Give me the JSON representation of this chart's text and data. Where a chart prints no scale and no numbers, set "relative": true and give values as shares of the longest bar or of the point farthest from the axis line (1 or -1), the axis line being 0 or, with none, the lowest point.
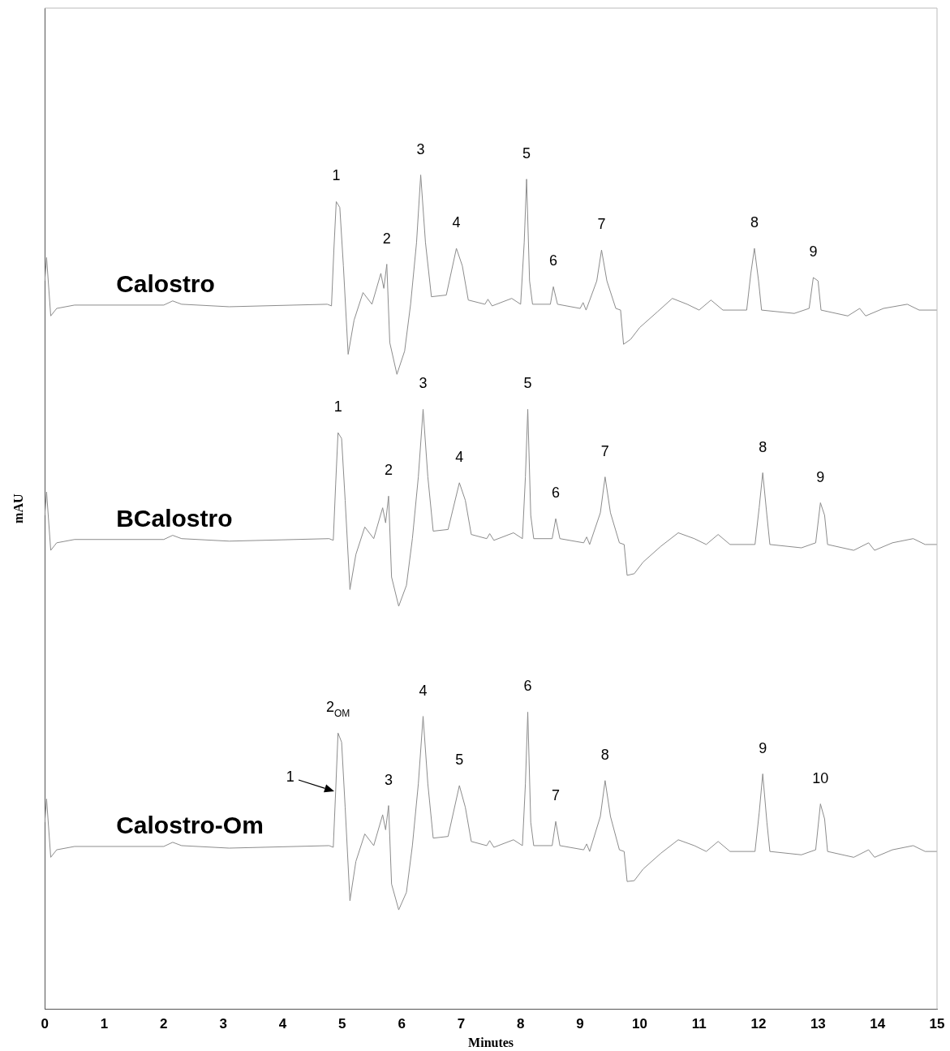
{
  "chart_data": {
    "type": "line",
    "relative": true,
    "xlabel": "Minutes",
    "ylabel": "mAU",
    "xlim": [
      0,
      15
    ],
    "xticks": [
      0,
      1,
      2,
      3,
      4,
      5,
      6,
      7,
      8,
      9,
      10,
      11,
      12,
      13,
      14,
      15
    ],
    "tick_labels": "x",
    "grid": false,
    "legend": false,
    "marker": "none",
    "line_style": "solid",
    "series": [
      {
        "name": "Calostro",
        "color": "#8c8c8c",
        "x": [
          0,
          0.03,
          0.1,
          0.2,
          0.5,
          2.0,
          2.15,
          2.3,
          3.1,
          4.75,
          4.82,
          4.86,
          4.9,
          4.96,
          5.02,
          5.1,
          5.2,
          5.35,
          5.5,
          5.65,
          5.7,
          5.75,
          5.8,
          5.92,
          6.05,
          6.15,
          6.25,
          6.32,
          6.4,
          6.5,
          6.75,
          6.92,
          7.02,
          7.12,
          7.4,
          7.45,
          7.52,
          7.85,
          8.0,
          8.06,
          8.1,
          8.15,
          8.2,
          8.5,
          8.55,
          8.62,
          9.0,
          9.05,
          9.1,
          9.28,
          9.36,
          9.45,
          9.6,
          9.68,
          9.73,
          9.85,
          10.0,
          10.3,
          10.55,
          10.8,
          11.0,
          11.2,
          11.4,
          11.8,
          11.87,
          11.93,
          12.0,
          12.05,
          12.6,
          12.85,
          12.92,
          13.0,
          13.05,
          13.5,
          13.7,
          13.8,
          14.1,
          14.5,
          14.7,
          15.0
        ],
        "values": [
          0.873,
          0.901,
          0.831,
          0.84,
          0.844,
          0.844,
          0.849,
          0.845,
          0.842,
          0.845,
          0.843,
          0.91,
          0.968,
          0.961,
          0.891,
          0.785,
          0.826,
          0.859,
          0.845,
          0.882,
          0.864,
          0.893,
          0.799,
          0.761,
          0.789,
          0.845,
          0.919,
          1,
          0.919,
          0.854,
          0.856,
          0.912,
          0.891,
          0.85,
          0.845,
          0.851,
          0.843,
          0.852,
          0.845,
          0.919,
          0.995,
          0.873,
          0.845,
          0.845,
          0.866,
          0.845,
          0.84,
          0.847,
          0.838,
          0.873,
          0.91,
          0.873,
          0.84,
          0.838,
          0.797,
          0.803,
          0.817,
          0.836,
          0.852,
          0.845,
          0.838,
          0.85,
          0.838,
          0.838,
          0.882,
          0.912,
          0.873,
          0.838,
          0.834,
          0.84,
          0.877,
          0.873,
          0.838,
          0.831,
          0.84,
          0.831,
          0.84,
          0.845,
          0.838,
          0.838
        ]
      },
      {
        "name": "BCalostro",
        "color": "#8c8c8c",
        "x": [
          0,
          0.03,
          0.1,
          0.2,
          0.5,
          2.0,
          2.15,
          2.3,
          3.1,
          4.78,
          4.85,
          4.89,
          4.93,
          4.99,
          5.05,
          5.13,
          5.23,
          5.38,
          5.53,
          5.68,
          5.73,
          5.78,
          5.83,
          5.95,
          6.08,
          6.18,
          6.28,
          6.36,
          6.44,
          6.53,
          6.78,
          6.97,
          7.07,
          7.17,
          7.43,
          7.48,
          7.55,
          7.88,
          8.03,
          8.08,
          8.12,
          8.17,
          8.22,
          8.53,
          8.59,
          8.66,
          9.06,
          9.11,
          9.16,
          9.34,
          9.42,
          9.51,
          9.66,
          9.74,
          9.79,
          9.91,
          10.06,
          10.36,
          10.65,
          10.92,
          11.12,
          11.32,
          11.52,
          11.94,
          12.01,
          12.07,
          12.14,
          12.19,
          12.72,
          12.96,
          13.04,
          13.11,
          13.16,
          13.6,
          13.85,
          13.95,
          14.25,
          14.6,
          14.8,
          15.0
        ],
        "values": [
          0.592,
          0.62,
          0.55,
          0.559,
          0.563,
          0.563,
          0.568,
          0.564,
          0.561,
          0.564,
          0.562,
          0.629,
          0.691,
          0.684,
          0.61,
          0.503,
          0.545,
          0.578,
          0.564,
          0.601,
          0.583,
          0.615,
          0.518,
          0.483,
          0.508,
          0.564,
          0.638,
          0.719,
          0.638,
          0.573,
          0.575,
          0.631,
          0.61,
          0.569,
          0.564,
          0.57,
          0.562,
          0.571,
          0.564,
          0.638,
          0.719,
          0.592,
          0.564,
          0.564,
          0.588,
          0.564,
          0.559,
          0.566,
          0.557,
          0.595,
          0.638,
          0.595,
          0.559,
          0.557,
          0.52,
          0.522,
          0.536,
          0.555,
          0.571,
          0.564,
          0.557,
          0.569,
          0.557,
          0.557,
          0.601,
          0.643,
          0.592,
          0.557,
          0.553,
          0.559,
          0.607,
          0.592,
          0.557,
          0.55,
          0.559,
          0.55,
          0.559,
          0.564,
          0.557,
          0.557
        ]
      },
      {
        "name": "Calostro-Om",
        "color": "#8c8c8c",
        "x": [
          0,
          0.03,
          0.1,
          0.2,
          0.5,
          2.0,
          2.15,
          2.3,
          3.1,
          4.78,
          4.85,
          4.89,
          4.93,
          4.99,
          5.05,
          5.13,
          5.23,
          5.38,
          5.53,
          5.68,
          5.73,
          5.78,
          5.83,
          5.95,
          6.08,
          6.18,
          6.28,
          6.36,
          6.44,
          6.53,
          6.78,
          6.97,
          7.07,
          7.17,
          7.43,
          7.48,
          7.55,
          7.88,
          8.03,
          8.08,
          8.12,
          8.17,
          8.22,
          8.53,
          8.59,
          8.66,
          9.06,
          9.11,
          9.16,
          9.34,
          9.42,
          9.51,
          9.66,
          9.74,
          9.79,
          9.91,
          10.06,
          10.36,
          10.65,
          10.92,
          11.12,
          11.32,
          11.52,
          11.94,
          12.01,
          12.07,
          12.14,
          12.19,
          12.72,
          12.96,
          13.04,
          13.11,
          13.16,
          13.6,
          13.85,
          13.95,
          14.25,
          14.6,
          14.8,
          15.0
        ],
        "values": [
          0.224,
          0.252,
          0.182,
          0.191,
          0.195,
          0.195,
          0.2,
          0.196,
          0.193,
          0.196,
          0.194,
          0.261,
          0.331,
          0.32,
          0.242,
          0.13,
          0.177,
          0.21,
          0.196,
          0.233,
          0.215,
          0.244,
          0.15,
          0.119,
          0.14,
          0.196,
          0.27,
          0.351,
          0.27,
          0.205,
          0.207,
          0.268,
          0.242,
          0.201,
          0.196,
          0.202,
          0.194,
          0.203,
          0.196,
          0.27,
          0.356,
          0.224,
          0.196,
          0.196,
          0.225,
          0.196,
          0.191,
          0.198,
          0.189,
          0.231,
          0.274,
          0.231,
          0.191,
          0.189,
          0.153,
          0.154,
          0.168,
          0.187,
          0.203,
          0.196,
          0.189,
          0.201,
          0.189,
          0.189,
          0.235,
          0.282,
          0.224,
          0.189,
          0.185,
          0.191,
          0.246,
          0.228,
          0.189,
          0.182,
          0.191,
          0.182,
          0.191,
          0.196,
          0.189,
          0.189
        ]
      }
    ],
    "annotations": [
      {
        "text": "1",
        "x": 4.9,
        "y": 0.968
      },
      {
        "text": "2",
        "x": 5.75,
        "y": 0.893
      },
      {
        "text": "3",
        "x": 6.32,
        "y": 1
      },
      {
        "text": "4",
        "x": 6.92,
        "y": 0.912
      },
      {
        "text": "5",
        "x": 8.1,
        "y": 0.995
      },
      {
        "text": "6",
        "x": 8.55,
        "y": 0.866
      },
      {
        "text": "7",
        "x": 9.36,
        "y": 0.91
      },
      {
        "text": "8",
        "x": 11.93,
        "y": 0.912
      },
      {
        "text": "9",
        "x": 12.92,
        "y": 0.877
      },
      {
        "text": "1",
        "x": 4.93,
        "y": 0.691
      },
      {
        "text": "2",
        "x": 5.78,
        "y": 0.615
      },
      {
        "text": "3",
        "x": 6.36,
        "y": 0.719
      },
      {
        "text": "4",
        "x": 6.97,
        "y": 0.631
      },
      {
        "text": "5",
        "x": 8.12,
        "y": 0.719
      },
      {
        "text": "6",
        "x": 8.59,
        "y": 0.588
      },
      {
        "text": "7",
        "x": 9.42,
        "y": 0.638
      },
      {
        "text": "8",
        "x": 12.07,
        "y": 0.643
      },
      {
        "text": "9",
        "x": 13.04,
        "y": 0.607
      },
      {
        "text": "2$_{OM}$",
        "x": 4.93,
        "y": 0.331
      },
      {
        "text": "3",
        "x": 5.78,
        "y": 0.244
      },
      {
        "text": "4",
        "x": 6.36,
        "y": 0.351
      },
      {
        "text": "5",
        "x": 6.97,
        "y": 0.268
      },
      {
        "text": "6",
        "x": 8.12,
        "y": 0.356
      },
      {
        "text": "7",
        "x": 8.59,
        "y": 0.225
      },
      {
        "text": "8",
        "x": 9.42,
        "y": 0.274
      },
      {
        "text": "9",
        "x": 12.07,
        "y": 0.282
      },
      {
        "text": "10",
        "x": 13.04,
        "y": 0.246
      },
      {
        "text": "1",
        "x": 4.89,
        "y": 0.261
      }
    ]
  }
}
